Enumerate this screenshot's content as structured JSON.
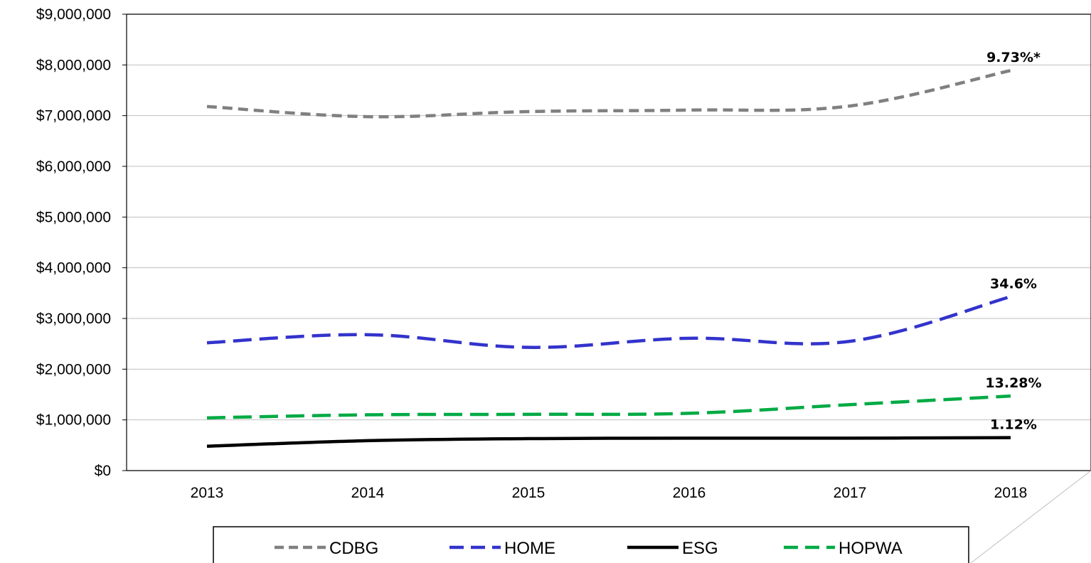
{
  "chart_data": {
    "type": "line",
    "title": "",
    "xlabel": "",
    "ylabel": "",
    "categories": [
      "2013",
      "2014",
      "2015",
      "2016",
      "2017",
      "2018"
    ],
    "ylim": [
      0,
      9000000
    ],
    "y_tick_values": [
      0,
      1000000,
      2000000,
      3000000,
      4000000,
      5000000,
      6000000,
      7000000,
      8000000,
      9000000
    ],
    "y_tick_labels": [
      "$0",
      "$1,000,000",
      "$2,000,000",
      "$3,000,000",
      "$4,000,000",
      "$5,000,000",
      "$6,000,000",
      "$7,000,000",
      "$8,000,000",
      "$9,000,000"
    ],
    "grid": true,
    "legend_position": "bottom",
    "series": [
      {
        "name": "CDBG",
        "values": [
          7180000,
          6980000,
          7080000,
          7110000,
          7190000,
          7890000
        ],
        "color": "#808080",
        "style": "dashed",
        "annotation": "9.73%*"
      },
      {
        "name": "HOME",
        "values": [
          2520000,
          2680000,
          2430000,
          2610000,
          2550000,
          3430000
        ],
        "color": "#3333CC",
        "style": "long-dashed",
        "annotation": "34.6%"
      },
      {
        "name": "ESG",
        "values": [
          480000,
          590000,
          630000,
          640000,
          640000,
          650000
        ],
        "color": "#000000",
        "style": "solid",
        "annotation": "1.12%"
      },
      {
        "name": "HOPWA",
        "values": [
          1040000,
          1100000,
          1110000,
          1130000,
          1300000,
          1470000
        ],
        "color": "#00AA44",
        "style": "long-dashed",
        "annotation": "13.28%"
      }
    ]
  }
}
